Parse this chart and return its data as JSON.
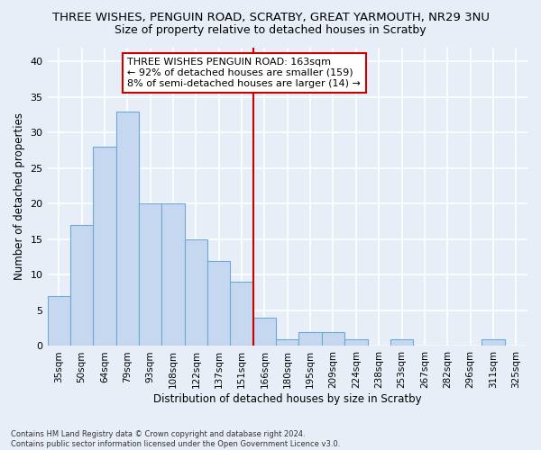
{
  "title": "THREE WISHES, PENGUIN ROAD, SCRATBY, GREAT YARMOUTH, NR29 3NU",
  "subtitle": "Size of property relative to detached houses in Scratby",
  "xlabel": "Distribution of detached houses by size in Scratby",
  "ylabel": "Number of detached properties",
  "categories": [
    "35sqm",
    "50sqm",
    "64sqm",
    "79sqm",
    "93sqm",
    "108sqm",
    "122sqm",
    "137sqm",
    "151sqm",
    "166sqm",
    "180sqm",
    "195sqm",
    "209sqm",
    "224sqm",
    "238sqm",
    "253sqm",
    "267sqm",
    "282sqm",
    "296sqm",
    "311sqm",
    "325sqm"
  ],
  "values": [
    7,
    17,
    28,
    33,
    20,
    20,
    15,
    12,
    9,
    4,
    1,
    2,
    2,
    1,
    0,
    1,
    0,
    0,
    0,
    1,
    0
  ],
  "bar_color": "#c5d8f0",
  "bar_edge_color": "#6aaad4",
  "vline_color": "#cc0000",
  "annotation_text": "THREE WISHES PENGUIN ROAD: 163sqm\n← 92% of detached houses are smaller (159)\n8% of semi-detached houses are larger (14) →",
  "annotation_box_color": "#ffffff",
  "annotation_box_edge": "#cc0000",
  "ylim": [
    0,
    42
  ],
  "yticks": [
    0,
    5,
    10,
    15,
    20,
    25,
    30,
    35,
    40
  ],
  "footer": "Contains HM Land Registry data © Crown copyright and database right 2024.\nContains public sector information licensed under the Open Government Licence v3.0.",
  "bg_color": "#e8eef8",
  "grid_color": "#ffffff",
  "title_fontsize": 9.5,
  "subtitle_fontsize": 9,
  "bar_width": 1.0
}
